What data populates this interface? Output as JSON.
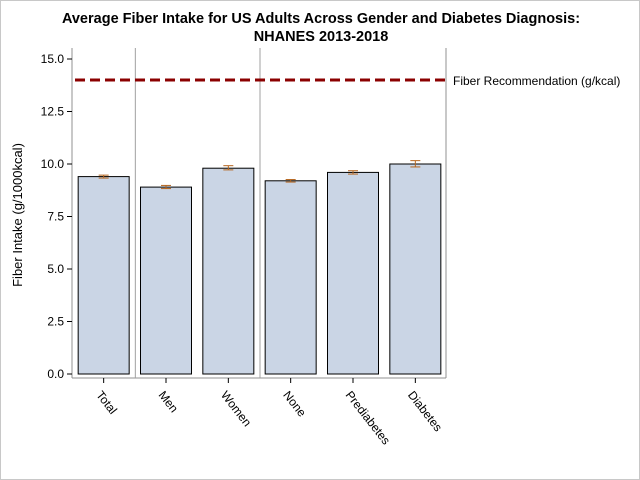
{
  "chart_data": {
    "type": "bar",
    "title": "Average Fiber Intake for US Adults Across Gender and Diabetes Diagnosis:",
    "subtitle": "NHANES 2013-2018",
    "xlabel": "",
    "ylabel": "Fiber Intake (g/1000kcal)",
    "categories": [
      "Total",
      "Men",
      "Women",
      "None",
      "Prediabetes",
      "Diabetes"
    ],
    "values": [
      9.4,
      8.9,
      9.8,
      9.2,
      9.6,
      10.0
    ],
    "error_bars": {
      "lower": [
        9.33,
        8.83,
        9.72,
        9.14,
        9.52,
        9.86
      ],
      "upper": [
        9.47,
        8.98,
        9.92,
        9.26,
        9.68,
        10.16
      ]
    },
    "groups": [
      [
        "Total"
      ],
      [
        "Men",
        "Women"
      ],
      [
        "None",
        "Prediabetes",
        "Diabetes"
      ]
    ],
    "ylim": [
      0,
      15
    ],
    "yticks": [
      0.0,
      2.5,
      5.0,
      7.5,
      10.0,
      12.5,
      15.0
    ],
    "ytick_labels": [
      "0.0",
      "2.5",
      "5.0",
      "7.5",
      "10.0",
      "12.5",
      "15.0"
    ],
    "reference_line": {
      "value": 14,
      "label": "Fiber Recommendation (g/kcal)",
      "color": "#8b0000",
      "style": "dashed"
    },
    "colors": {
      "bar_fill": "#cad5e5",
      "bar_stroke": "#000000",
      "error_bar": "#b5651d",
      "axis": "#909090",
      "group_separator": "#a0a0a0"
    },
    "grid": false,
    "legend": "none"
  }
}
